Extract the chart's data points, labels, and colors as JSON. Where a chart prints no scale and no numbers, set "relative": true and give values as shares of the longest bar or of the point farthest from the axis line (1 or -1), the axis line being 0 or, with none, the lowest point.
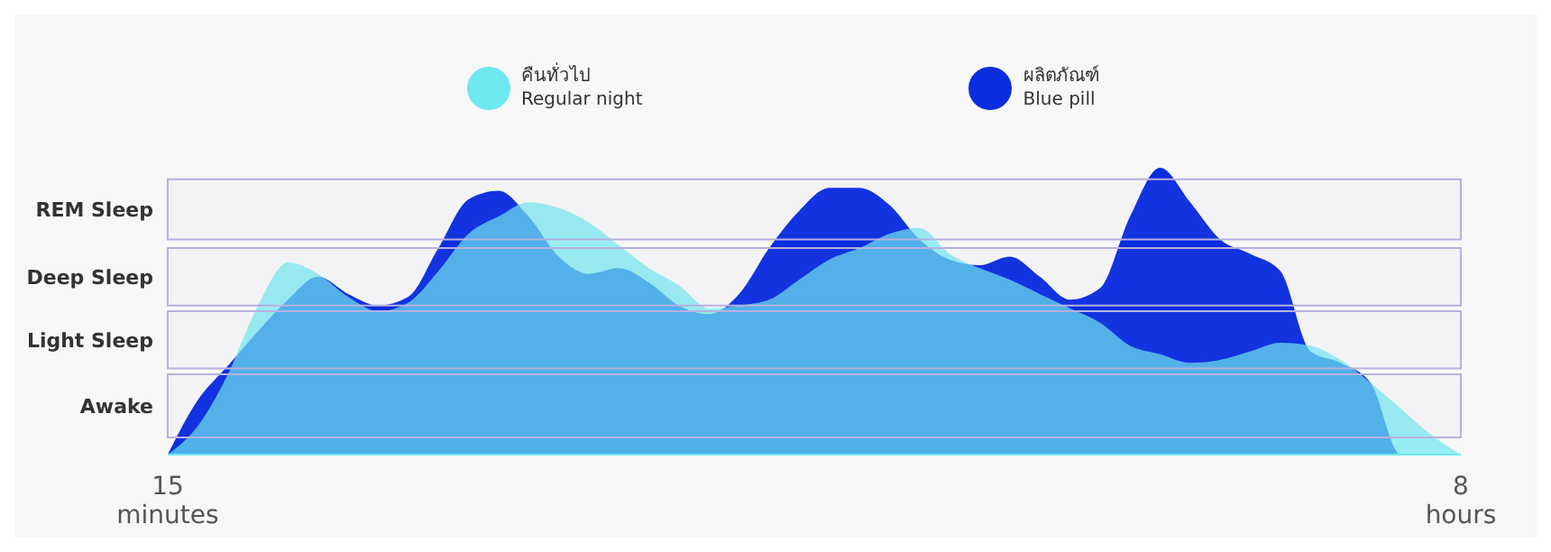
{
  "chart_data": {
    "type": "area",
    "relative": true,
    "legend": "top",
    "grid": false,
    "categories": [
      "15 minutes",
      null,
      null,
      null,
      null,
      null,
      null,
      null,
      null,
      null,
      null,
      null,
      null,
      null,
      null,
      null,
      null,
      null,
      null,
      null,
      null,
      null,
      null,
      null,
      null,
      null,
      null,
      null,
      null,
      null,
      null,
      null,
      null,
      null,
      null,
      null,
      null,
      null,
      null,
      null,
      null,
      null,
      null,
      "8 hours"
    ],
    "bands": [
      {
        "axis": "y",
        "from": 0.75,
        "to": 0.96,
        "label": "REM Sleep",
        "color": "#b7b0e0"
      },
      {
        "axis": "y",
        "from": 0.52,
        "to": 0.72,
        "label": "Deep Sleep",
        "color": "#b7b0e0"
      },
      {
        "axis": "y",
        "from": 0.3,
        "to": 0.5,
        "label": "Light Sleep",
        "color": "#b7b0e0"
      },
      {
        "axis": "y",
        "from": 0.06,
        "to": 0.28,
        "label": "Awake",
        "color": "#b7b0e0"
      }
    ],
    "series": [
      {
        "name": "ผลิตภัณฑ์\nBlue pill",
        "color": "#0a2de0",
        "values": [
          0,
          0.19,
          0.31,
          0.43,
          0.54,
          0.62,
          0.56,
          0.52,
          0.55,
          0.72,
          0.89,
          0.92,
          0.83,
          0.69,
          0.63,
          0.65,
          0.6,
          0.52,
          0.49,
          0.56,
          0.72,
          0.85,
          0.93,
          0.93,
          0.87,
          0.75,
          0.68,
          0.66,
          0.69,
          0.62,
          0.54,
          0.58,
          0.83,
          1,
          0.88,
          0.75,
          0.7,
          0.64,
          0.36,
          0.32,
          0.25,
          0,
          0,
          0
        ]
      },
      {
        "name": "คืนทั่วไป\nRegular night",
        "color": "#6ee8ee",
        "values": [
          0,
          0.1,
          0.28,
          0.52,
          0.67,
          0.63,
          0.55,
          0.5,
          0.53,
          0.64,
          0.77,
          0.83,
          0.88,
          0.86,
          0.81,
          0.73,
          0.65,
          0.59,
          0.51,
          0.52,
          0.54,
          0.61,
          0.68,
          0.72,
          0.77,
          0.79,
          0.7,
          0.65,
          0.61,
          0.56,
          0.51,
          0.46,
          0.38,
          0.35,
          0.32,
          0.33,
          0.36,
          0.39,
          0.38,
          0.33,
          0.25,
          0.16,
          0.07,
          0
        ]
      }
    ]
  }
}
